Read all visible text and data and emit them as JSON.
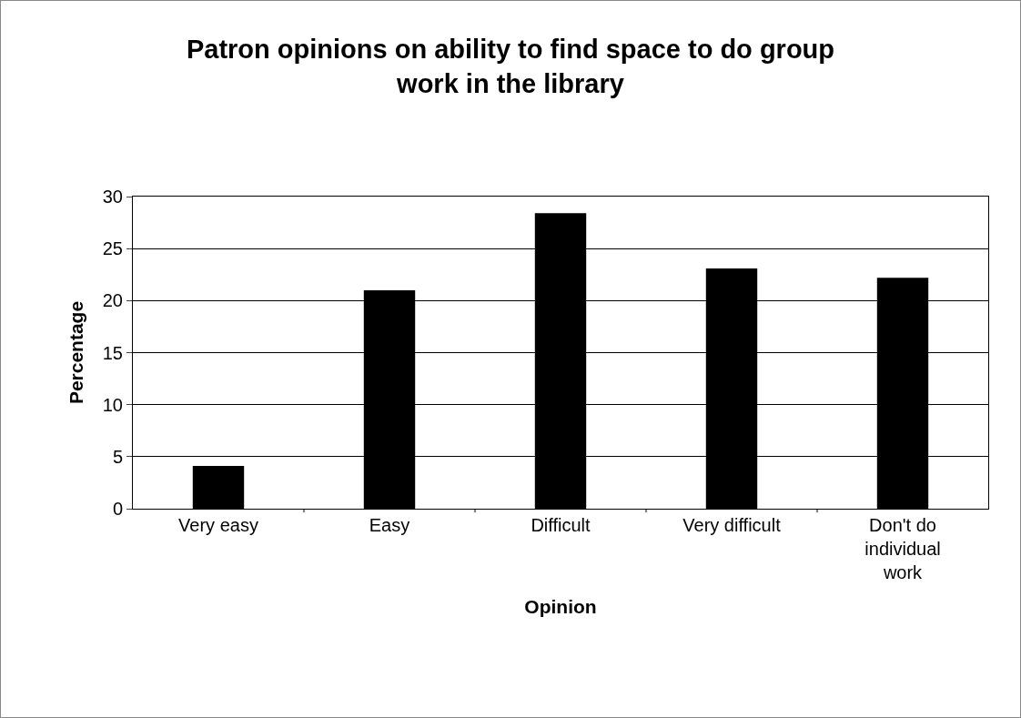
{
  "chart_data": {
    "type": "bar",
    "title": "Patron opinions on ability to find space to do group work in the library",
    "xlabel": "Opinion",
    "ylabel": "Percentage",
    "categories": [
      "Very easy",
      "Easy",
      "Difficult",
      "Very difficult",
      "Don't do individual work"
    ],
    "values": [
      4.1,
      21.0,
      28.4,
      23.1,
      22.2
    ],
    "color": "#000000",
    "ylim": [
      0,
      30
    ],
    "yticks": [
      0,
      5,
      10,
      15,
      20,
      25,
      30
    ],
    "grid": "y"
  }
}
